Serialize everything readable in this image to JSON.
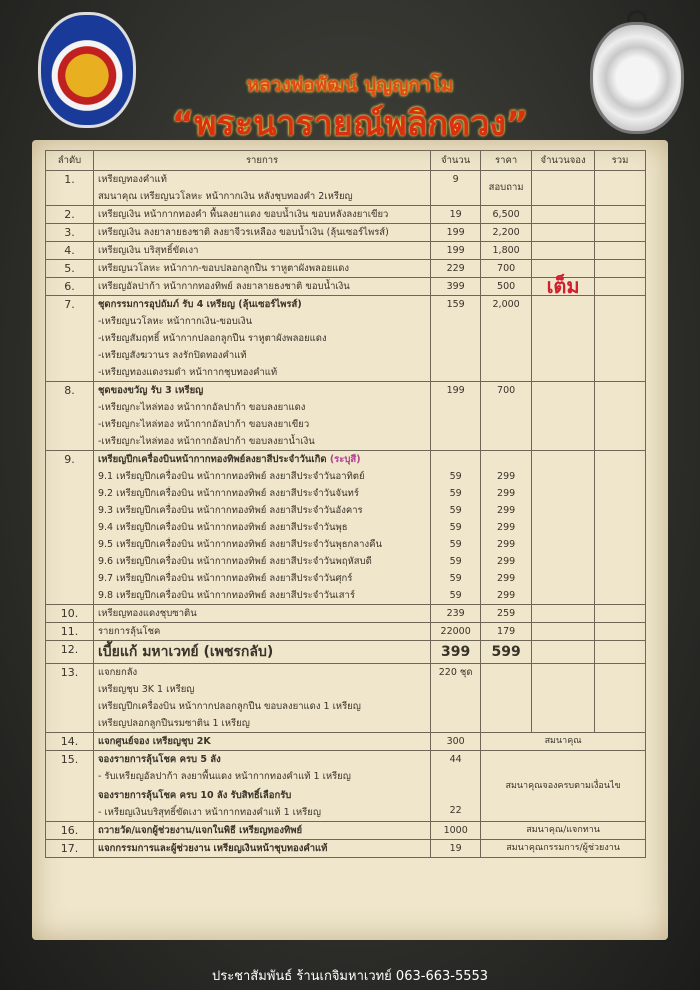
{
  "header": {
    "title_line1": "หลวงพ่อพัฒน์ ปุญญกาโม",
    "title_line2": "“พระนารายณ์พลิกดวง”"
  },
  "table": {
    "columns": [
      "ลำดับ",
      "รายการ",
      "จำนวน",
      "ราคา",
      "จำนวนจอง",
      "รวม"
    ],
    "rows": [
      {
        "no": "1.",
        "lines": [
          "เหรียญทองคำแท้",
          "สมนาคุณ เหรียญนวโลหะ หน้ากากเงิน หลังชุบทองคำ 2เหรียญ"
        ],
        "qty": "9",
        "price": "สอบถาม"
      },
      {
        "no": "2.",
        "lines": [
          "เหรียญเงิน หน้ากากทองคำ พื้นลงยาแดง ขอบน้ำเงิน ขอบหลังลงยาเขียว"
        ],
        "qty": "19",
        "price": "6,500"
      },
      {
        "no": "3.",
        "lines": [
          "เหรียญเงิน ลงยาลายธงชาติ ลงยาจีวรเหลือง ขอบน้ำเงิน (ลุ้นเซอร์ไพรส์)"
        ],
        "qty": "199",
        "price": "2,200"
      },
      {
        "no": "4.",
        "lines": [
          "เหรียญเงิน บริสุทธิ์ขัดเงา"
        ],
        "qty": "199",
        "price": "1,800"
      },
      {
        "no": "5.",
        "lines": [
          "เหรียญนวโลหะ หน้ากาก-ขอบปลอกลูกปืน ราหูตาผังพลอยแดง"
        ],
        "qty": "229",
        "price": "700"
      },
      {
        "no": "6.",
        "lines": [
          "เหรียญอัลปาก้า หน้ากากทองทิพย์ ลงยาลายธงชาติ ขอบน้ำเงิน"
        ],
        "qty": "399",
        "price": "500",
        "booking": "เต็ม"
      },
      {
        "no": "7.",
        "bold": true,
        "lines": [
          "ชุดกรรมการอุปถัมภ์ รับ 4 เหรียญ (ลุ้นเซอร์ไพรส์)",
          "-เหรียญนวโลหะ หน้ากากเงิน-ขอบเงิน",
          "-เหรียญสัมฤทธิ์ หน้ากากปลอกลูกปืน ราหูตาผังพลอยแดง",
          "-เหรียญสังฆวานร ลงรักปิดทองคำแท้",
          "-เหรียญทองแดงรมดำ หน้ากากชุบทองคำแท้"
        ],
        "qty": "159",
        "price": "2,000"
      },
      {
        "no": "8.",
        "bold": true,
        "lines": [
          "ชุดของขวัญ รับ 3 เหรียญ",
          "-เหรียญกะไหล่ทอง หน้ากากอัลปาก้า ขอบลงยาแดง",
          "-เหรียญกะไหล่ทอง หน้ากากอัลปาก้า ขอบลงยาเขียว",
          "-เหรียญกะไหล่ทอง หน้ากากอัลปาก้า ขอบลงยาน้ำเงิน"
        ],
        "qty": "199",
        "price": "700"
      },
      {
        "no": "9.",
        "bold": true,
        "lines": [
          "เหรียญปีกเครื่องบินหน้ากากทองทิพย์ลงยาสีประจำวันเกิด"
        ],
        "highlight": "(ระบุสี)",
        "sub": [
          {
            "label": "9.1 เหรียญปีกเครื่องบิน หน้ากากทองทิพย์ ลงยาสีประจำวันอาทิตย์",
            "qty": "59",
            "price": "299"
          },
          {
            "label": "9.2 เหรียญปีกเครื่องบิน หน้ากากทองทิพย์ ลงยาสีประจำวันจันทร์",
            "qty": "59",
            "price": "299"
          },
          {
            "label": "9.3 เหรียญปีกเครื่องบิน หน้ากากทองทิพย์ ลงยาสีประจำวันอังคาร",
            "qty": "59",
            "price": "299"
          },
          {
            "label": "9.4 เหรียญปีกเครื่องบิน หน้ากากทองทิพย์ ลงยาสีประจำวันพุธ",
            "qty": "59",
            "price": "299"
          },
          {
            "label": "9.5 เหรียญปีกเครื่องบิน หน้ากากทองทิพย์ ลงยาสีประจำวันพุธกลางคืน",
            "qty": "59",
            "price": "299"
          },
          {
            "label": "9.6 เหรียญปีกเครื่องบิน หน้ากากทองทิพย์ ลงยาสีประจำวันพฤหัสบดี",
            "qty": "59",
            "price": "299"
          },
          {
            "label": "9.7 เหรียญปีกเครื่องบิน หน้ากากทองทิพย์ ลงยาสีประจำวันศุกร์",
            "qty": "59",
            "price": "299"
          },
          {
            "label": "9.8 เหรียญปีกเครื่องบิน หน้ากากทองทิพย์ ลงยาสีประจำวันเสาร์",
            "qty": "59",
            "price": "299"
          }
        ]
      },
      {
        "no": "10.",
        "lines": [
          "เหรียญทองแดงชุบซาติน"
        ],
        "qty": "239",
        "price": "259"
      },
      {
        "no": "11.",
        "lines": [
          "รายการลุ้นโชค"
        ],
        "qty": "22000",
        "price": "179"
      },
      {
        "no": "12.",
        "big": true,
        "lines": [
          "เบี้ยแก้ มหาเวทย์ (เพชรกลับ)"
        ],
        "qty": "399",
        "price": "599"
      },
      {
        "no": "13.",
        "lines": [
          "แจกยกลัง",
          "เหรียญชุบ 3K  1 เหรียญ",
          "เหรียญปีกเครื่องบิน หน้ากากปลอกลูกปืน ขอบลงยาแดง 1 เหรียญ",
          "เหรียญปลอกลูกปืนรมซาติน 1 เหรียญ"
        ],
        "qty": "220 ชุด",
        "price": ""
      },
      {
        "no": "14.",
        "bold": true,
        "lines": [
          "แจกศูนย์จอง เหรียญชุบ 2K"
        ],
        "qty": "300",
        "note": "สมนาคุณ"
      },
      {
        "no": "15.",
        "lines": [
          "จองรายการลุ้นโชค ครบ 5 ลัง",
          "- รับเหรียญอัลปาก้า ลงยาพื้นแดง หน้ากากทองคำแท้ 1 เหรียญ",
          "จองรายการลุ้นโชค ครบ 10 ลัง รับสิทธิ์เลือกรับ",
          "- เหรียญเงินบริสุทธิ์ขัดเงา หน้ากากทองคำแท้ 1 เหรียญ"
        ],
        "boldLines": [
          0,
          2
        ],
        "qty": "44",
        "qty2": "22",
        "note": "สมนาคุณจองครบตามเงื่อนไข"
      },
      {
        "no": "16.",
        "bold": true,
        "lines": [
          "ถวายวัด/แจกผู้ช่วยงาน/แจกในพิธี เหรียญทองทิพย์"
        ],
        "qty": "1000",
        "note": "สมนาคุณ/แจกทาน"
      },
      {
        "no": "17.",
        "bold": true,
        "lines": [
          "แจกกรรมการและผู้ช่วยงาน เหรียญเงินหน้าชุบทองคำแท้"
        ],
        "qty": "19",
        "note": "สมนาคุณกรรมการ/ผู้ช่วยงาน"
      }
    ]
  },
  "footer": {
    "text": "ประชาสัมพันธ์  ร้านเกจิมหาเวทย์  063-663-5553"
  },
  "colors": {
    "background": "#2e2e2a",
    "paper": "#efe6cc",
    "title": "#d83010",
    "full_stamp": "#d02030"
  }
}
